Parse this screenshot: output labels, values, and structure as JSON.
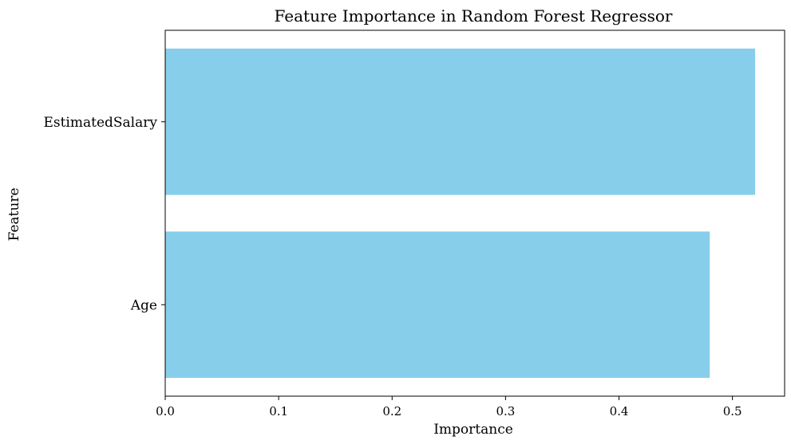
{
  "chart_data": {
    "type": "bar",
    "orientation": "horizontal",
    "title": "Feature Importance in Random Forest Regressor",
    "xlabel": "Importance",
    "ylabel": "Feature",
    "categories": [
      "EstimatedSalary",
      "Age"
    ],
    "values": [
      0.52,
      0.48
    ],
    "xlim": [
      0.0,
      0.546
    ],
    "xticks": [
      0.0,
      0.1,
      0.2,
      0.3,
      0.4,
      0.5
    ],
    "xtick_labels": [
      "0.0",
      "0.1",
      "0.2",
      "0.3",
      "0.4",
      "0.5"
    ],
    "bar_color": "#87ceeb",
    "grid": false,
    "legend": "none"
  }
}
